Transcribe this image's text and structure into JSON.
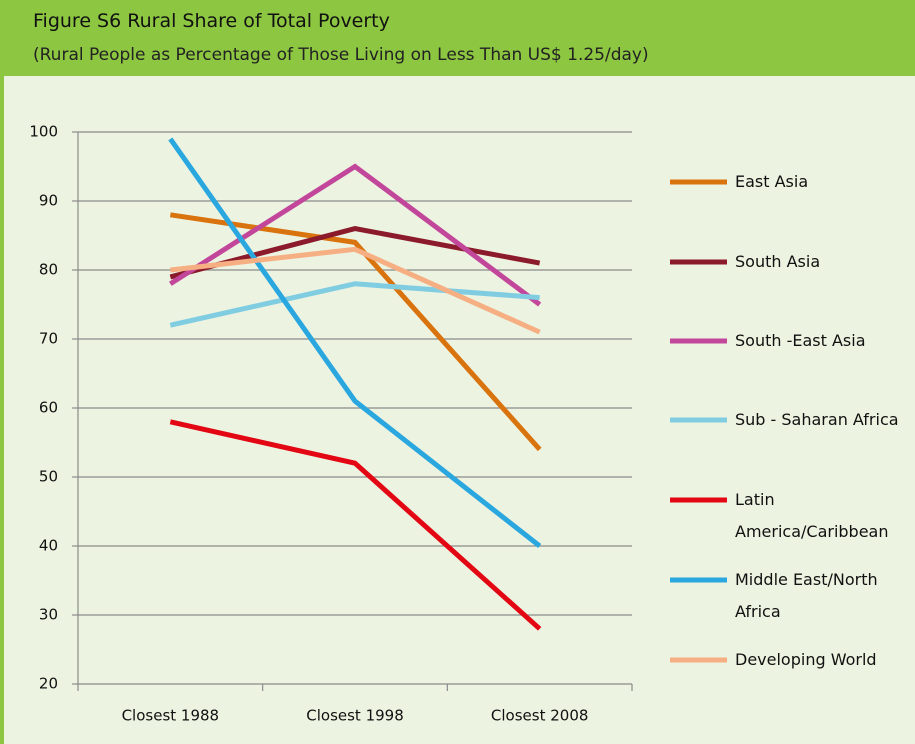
{
  "chart_data": {
    "type": "line",
    "title": "Figure S6 Rural Share of Total Poverty",
    "subtitle": "(Rural People as Percentage of Those Living on Less Than US$ 1.25/day)",
    "categories": [
      "Closest 1988",
      "Closest 1998",
      "Closest 2008"
    ],
    "ylim": [
      20,
      100
    ],
    "yticks": [
      20,
      30,
      40,
      50,
      60,
      70,
      80,
      90,
      100
    ],
    "grid": true,
    "legend": "right",
    "series": [
      {
        "name": "East Asia",
        "color": "#d9730d",
        "values": [
          88,
          84,
          54
        ]
      },
      {
        "name": "South Asia",
        "color": "#8b1a2b",
        "values": [
          79,
          86,
          81
        ]
      },
      {
        "name": "South -East Asia",
        "color": "#c2479b",
        "values": [
          78,
          95,
          75
        ]
      },
      {
        "name": "Sub - Saharan Africa",
        "color": "#80cde2",
        "values": [
          72,
          78,
          76
        ]
      },
      {
        "name": "Latin America/Caribbean",
        "color": "#e30613",
        "values": [
          58,
          52,
          28
        ]
      },
      {
        "name": "Middle East/North Africa",
        "color": "#2aa7df",
        "values": [
          99,
          61,
          40
        ]
      },
      {
        "name": "Developing World",
        "color": "#f6af83",
        "values": [
          80,
          83,
          71
        ]
      }
    ]
  }
}
